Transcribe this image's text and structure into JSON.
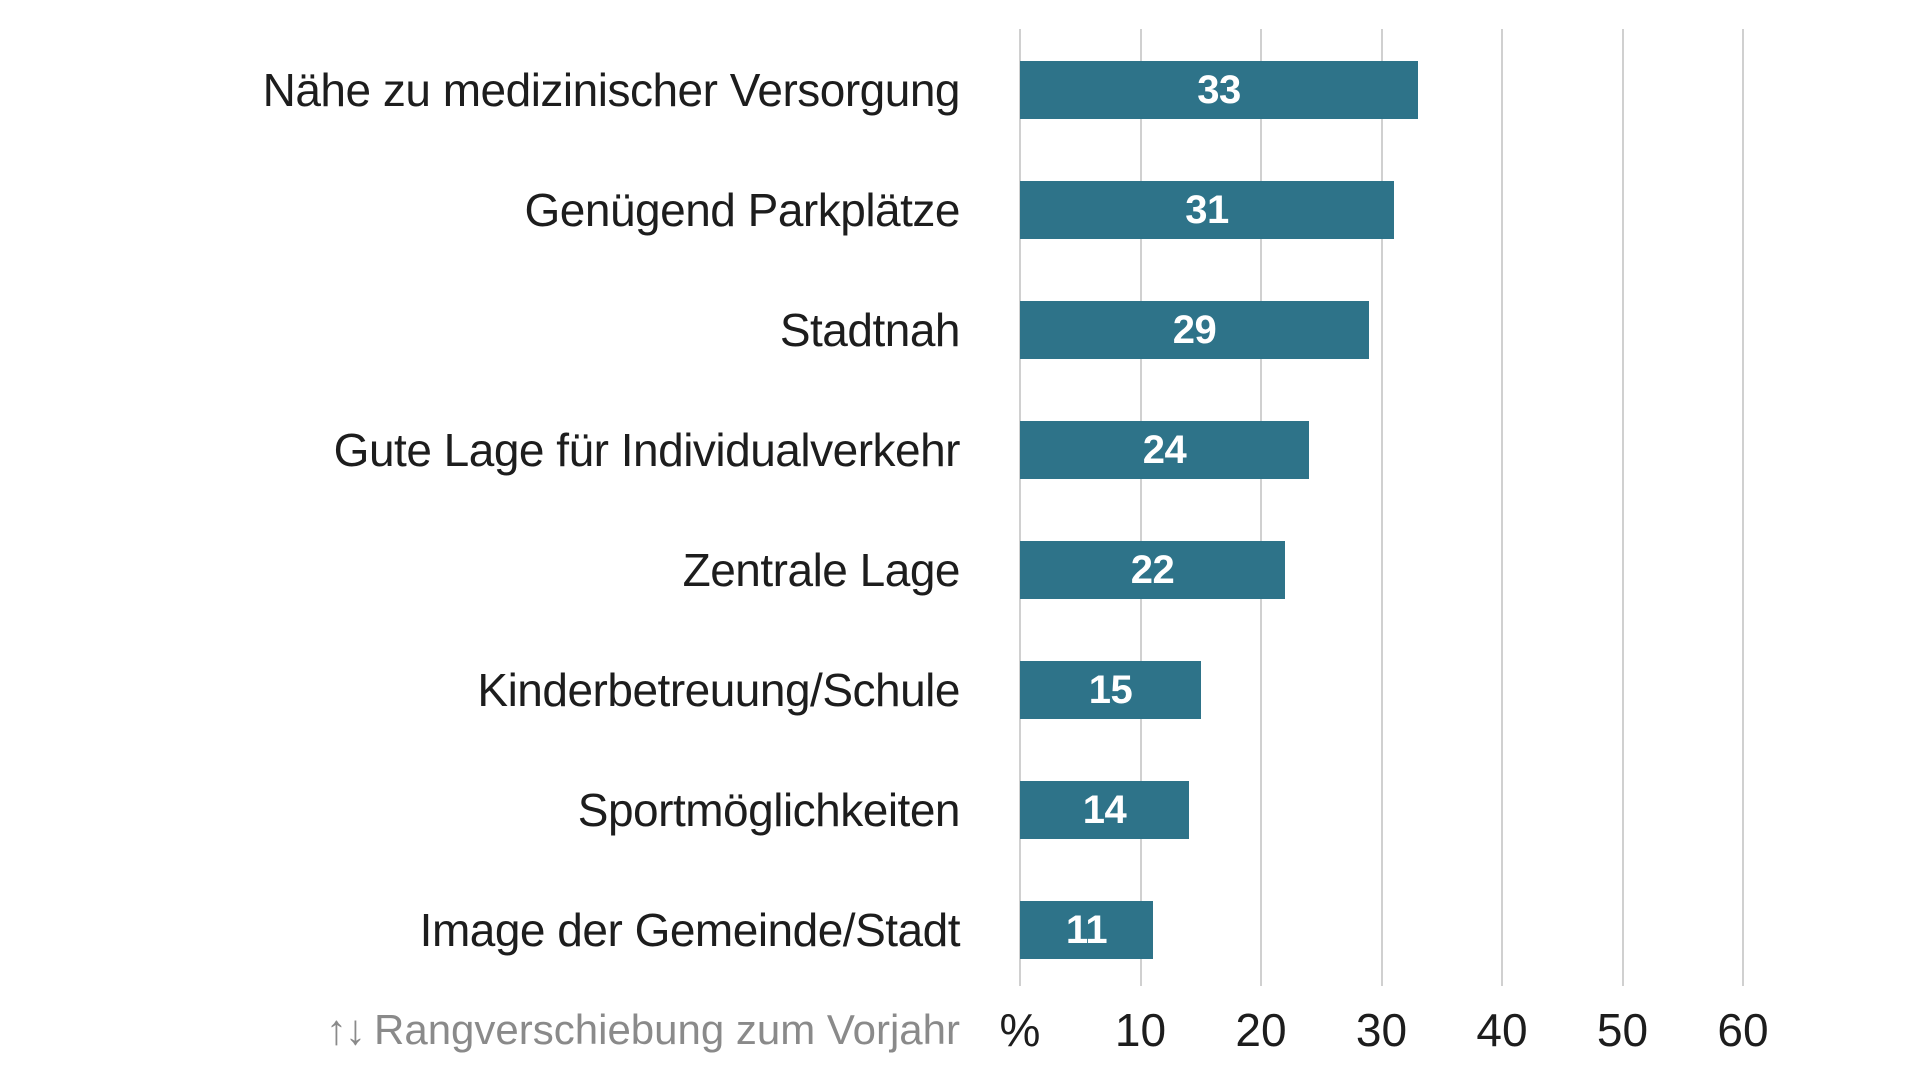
{
  "chart_data": {
    "type": "bar",
    "orientation": "horizontal",
    "title": "",
    "categories": [
      "Nähe zu medizinischer Versorgung",
      "Genügend Parkplätze",
      "Stadtnah",
      "Gute Lage für Individualverkehr",
      "Zentrale Lage",
      "Kinderbetreuung/Schule",
      "Sportmöglichkeiten",
      "Image der Gemeinde/Stadt"
    ],
    "values": [
      33,
      31,
      29,
      24,
      22,
      15,
      14,
      11
    ],
    "value_labels_inside_bars": true,
    "x_axis": {
      "unit_label": "%",
      "ticks": [
        0,
        10,
        20,
        30,
        40,
        50,
        60
      ],
      "tick_labels": [
        "%",
        "10",
        "20",
        "30",
        "40",
        "50",
        "60"
      ],
      "xlim": [
        0,
        63
      ],
      "grid": true
    },
    "footnote": {
      "icon": "↑↓",
      "text": "Rangverschiebung zum Vorjahr"
    },
    "colors": {
      "bar": "#2e7389",
      "value_label": "#ffffff",
      "category_label": "#1d1d1d",
      "axis_label": "#1d1d1d",
      "grid": "#d0d0d0",
      "footnote": "#8a8a8a",
      "background": "#ffffff"
    }
  }
}
